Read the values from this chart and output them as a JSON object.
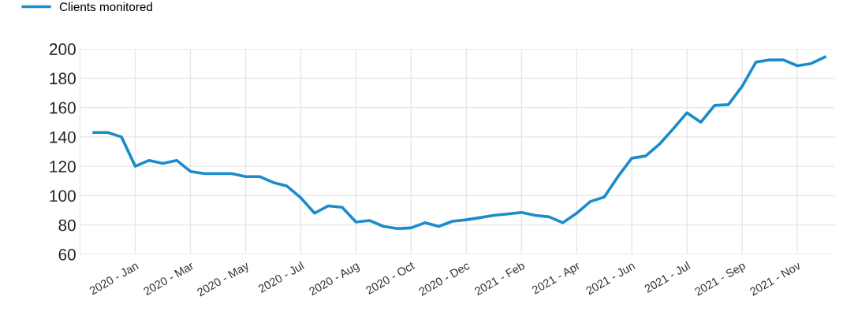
{
  "chart_data": {
    "type": "line",
    "categories": [
      null,
      null,
      null,
      "2020 - Jan",
      null,
      null,
      null,
      "2020 - Mar",
      null,
      null,
      null,
      "2020 - May",
      null,
      null,
      null,
      "2020 - Jul",
      null,
      null,
      null,
      "2020 - Aug",
      null,
      null,
      null,
      "2020 - Oct",
      null,
      null,
      null,
      "2020 - Dec",
      null,
      null,
      null,
      "2021 - Feb",
      null,
      null,
      null,
      "2021 - Apr",
      null,
      null,
      null,
      "2021 - Jun",
      null,
      null,
      null,
      "2021 - Jul",
      null,
      null,
      null,
      "2021 - Sep",
      null,
      null,
      null,
      "2021 - Nov",
      null,
      null
    ],
    "series": [
      {
        "name": "Clients monitored",
        "color": "#1a8ccc",
        "values": [
          143,
          143,
          140,
          120,
          124,
          122,
          124,
          116.5,
          115,
          115,
          115,
          113,
          113,
          109,
          106.5,
          98.5,
          88,
          93,
          92,
          82,
          83,
          79,
          77.5,
          78,
          81.5,
          79,
          82.5,
          83.5,
          85,
          86.5,
          87.5,
          88.5,
          86.5,
          85.5,
          81.5,
          88,
          96,
          99,
          113,
          125.5,
          127,
          135,
          145.5,
          156.5,
          150,
          161.5,
          162,
          174.5,
          191,
          192.5,
          192.5,
          188.5,
          190,
          194.5
        ]
      }
    ],
    "ylim": [
      60,
      200
    ],
    "yticks": [
      60,
      80,
      100,
      120,
      140,
      160,
      180,
      200
    ],
    "grid": true,
    "legend": "top left",
    "marker": "none",
    "line_style": "solid"
  }
}
